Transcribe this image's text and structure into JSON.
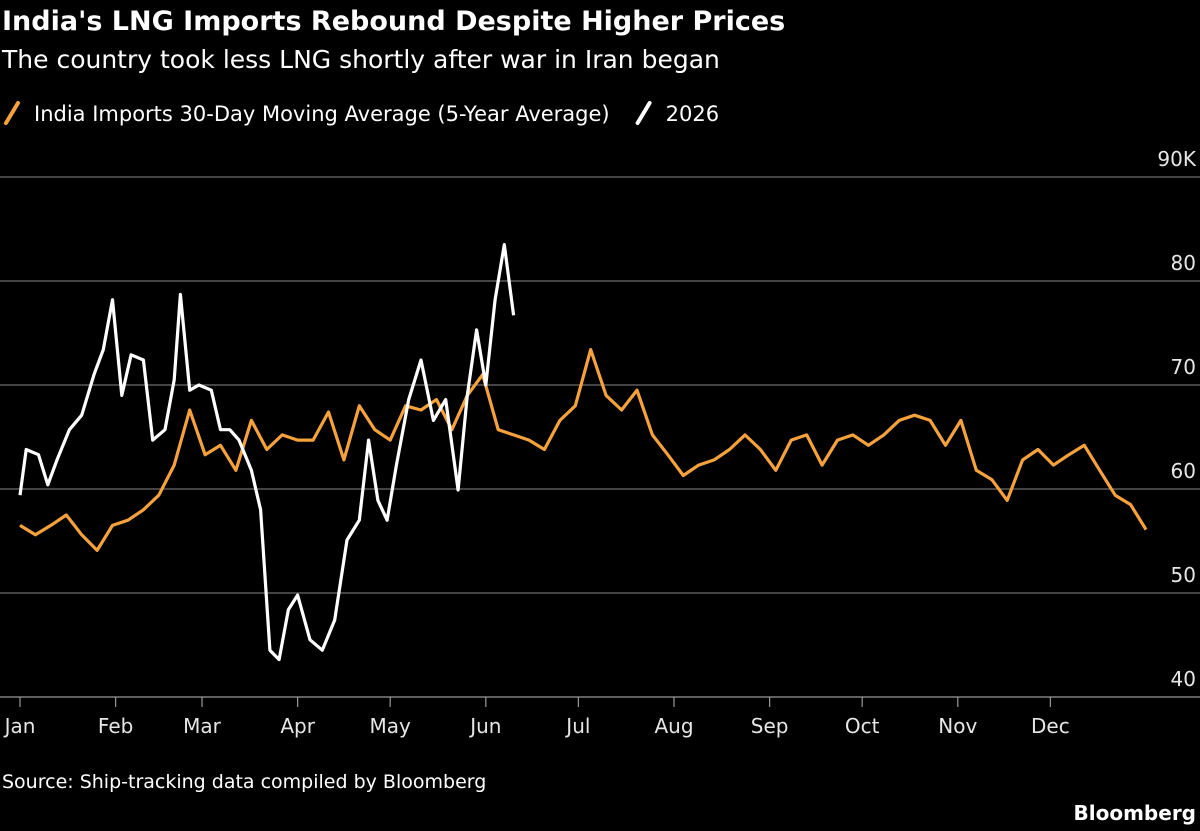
{
  "chart_data": {
    "type": "line",
    "title": "India's LNG Imports Rebound Despite Higher Prices",
    "subtitle": "The country took less LNG shortly after war in Iran began",
    "source": "Source: Ship-tracking data compiled by Bloomberg",
    "brand": "Bloomberg",
    "xlim": [
      0,
      365
    ],
    "xticks": [
      {
        "value": 0,
        "label": "Jan"
      },
      {
        "value": 31,
        "label": "Feb"
      },
      {
        "value": 59,
        "label": "Mar"
      },
      {
        "value": 90,
        "label": "Apr"
      },
      {
        "value": 120,
        "label": "May"
      },
      {
        "value": 151,
        "label": "Jun"
      },
      {
        "value": 181,
        "label": "Jul"
      },
      {
        "value": 212,
        "label": "Aug"
      },
      {
        "value": 243,
        "label": "Sep"
      },
      {
        "value": 273,
        "label": "Oct"
      },
      {
        "value": 304,
        "label": "Nov"
      },
      {
        "value": 334,
        "label": "Dec"
      }
    ],
    "ylim": [
      40,
      90
    ],
    "yticks": [
      40,
      50,
      60,
      70,
      80,
      {
        "value": 90,
        "label": "90K"
      }
    ],
    "grid": true,
    "series": [
      {
        "name": "India Imports 30-Day Moving Average (5-Year Average)",
        "color": "#f5a23c",
        "x": [
          0,
          5,
          10,
          15,
          20,
          25,
          30,
          35,
          40,
          45,
          50,
          55,
          60,
          65,
          70,
          75,
          80,
          85,
          90,
          95,
          100,
          105,
          110,
          115,
          120,
          125,
          130,
          135,
          140,
          145,
          150,
          155,
          160,
          165,
          170,
          175,
          180,
          185,
          190,
          195,
          200,
          205,
          210,
          215,
          220,
          225,
          230,
          235,
          240,
          245,
          250,
          255,
          260,
          265,
          270,
          275,
          280,
          285,
          290,
          295,
          300,
          305,
          310,
          315,
          320,
          325,
          330,
          335,
          340,
          345,
          350,
          355,
          360,
          365
        ],
        "values": [
          56.5,
          55.6,
          56.5,
          57.5,
          55.6,
          54.1,
          56.5,
          57,
          58,
          59.4,
          62.3,
          67.6,
          63.3,
          64.2,
          61.8,
          66.6,
          63.8,
          65.2,
          64.7,
          64.7,
          67.4,
          62.8,
          68,
          65.7,
          64.7,
          68,
          67.6,
          68.6,
          65.7,
          69,
          71,
          65.7,
          65.2,
          64.7,
          63.8,
          66.6,
          68,
          73.4,
          69,
          67.6,
          69.5,
          65.2,
          63.3,
          61.3,
          62.3,
          62.8,
          63.8,
          65.2,
          63.8,
          61.8,
          64.7,
          65.2,
          62.3,
          64.7,
          65.2,
          64.2,
          65.2,
          66.6,
          67.1,
          66.6,
          64.2,
          66.6,
          61.8,
          60.9,
          58.9,
          62.8,
          63.8,
          62.3,
          63.3,
          64.2,
          61.8,
          59.4,
          58.5,
          56.1
        ]
      },
      {
        "name": "2026",
        "color": "#ffffff",
        "x": [
          0,
          2,
          6,
          9,
          12,
          16,
          20,
          24,
          27,
          30,
          33,
          36,
          40,
          43,
          47,
          50,
          52,
          55,
          58,
          62,
          65,
          68,
          71,
          75,
          78,
          81,
          84,
          87,
          90,
          94,
          98,
          102,
          106,
          110,
          113,
          116,
          119,
          122,
          126,
          130,
          134,
          138,
          142,
          145,
          148,
          151,
          154,
          157,
          160
        ],
        "values": [
          59.4,
          63.8,
          63.3,
          60.4,
          62.8,
          65.7,
          67.1,
          71,
          73.4,
          78.2,
          69,
          72.9,
          72.4,
          64.7,
          65.7,
          70.5,
          78.7,
          69.5,
          70,
          69.5,
          65.7,
          65.7,
          64.7,
          61.8,
          58,
          44.5,
          43.6,
          48.4,
          49.8,
          45.5,
          44.5,
          47.4,
          55.1,
          57,
          64.7,
          58.9,
          57,
          62.3,
          68.6,
          72.4,
          66.6,
          68.6,
          59.9,
          69,
          75.3,
          70,
          78.2,
          83.5,
          76.7
        ]
      }
    ]
  }
}
